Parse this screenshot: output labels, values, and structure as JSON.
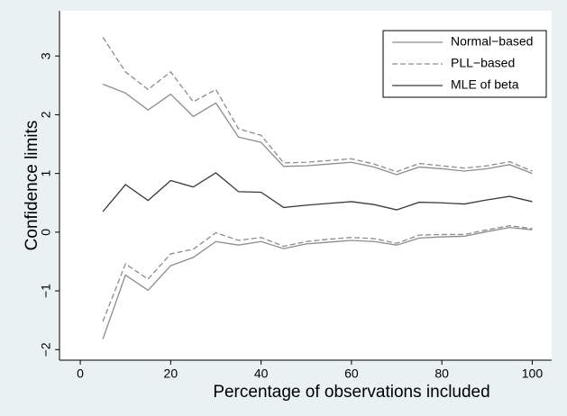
{
  "chart_data": {
    "type": "line",
    "xlabel": "Percentage of observations included",
    "ylabel": "Confidence limits",
    "x": [
      5,
      10,
      15,
      20,
      25,
      30,
      35,
      40,
      45,
      50,
      55,
      60,
      65,
      70,
      75,
      80,
      85,
      90,
      95,
      100
    ],
    "series": [
      {
        "name": "Normal−based",
        "color": "#8c8c8c",
        "dash": false,
        "upper": [
          2.52,
          2.37,
          2.08,
          2.35,
          1.97,
          2.2,
          1.62,
          1.53,
          1.12,
          1.13,
          1.16,
          1.19,
          1.11,
          0.98,
          1.11,
          1.08,
          1.04,
          1.08,
          1.15,
          1.0
        ],
        "lower": [
          -1.82,
          -0.73,
          -0.99,
          -0.57,
          -0.43,
          -0.16,
          -0.22,
          -0.16,
          -0.28,
          -0.2,
          -0.17,
          -0.14,
          -0.16,
          -0.22,
          -0.1,
          -0.08,
          -0.07,
          0.01,
          0.08,
          0.04
        ]
      },
      {
        "name": "PLL−based",
        "color": "#8c8c8c",
        "dash": true,
        "upper": [
          3.32,
          2.73,
          2.43,
          2.73,
          2.22,
          2.43,
          1.76,
          1.65,
          1.18,
          1.19,
          1.22,
          1.25,
          1.16,
          1.03,
          1.17,
          1.13,
          1.09,
          1.13,
          1.2,
          1.04
        ],
        "lower": [
          -1.52,
          -0.54,
          -0.8,
          -0.37,
          -0.29,
          -0.01,
          -0.14,
          -0.09,
          -0.24,
          -0.16,
          -0.12,
          -0.09,
          -0.11,
          -0.19,
          -0.05,
          -0.04,
          -0.04,
          0.04,
          0.11,
          0.06
        ]
      },
      {
        "name": "MLE of beta",
        "color": "#3a3a3a",
        "dash": false,
        "values": [
          0.35,
          0.81,
          0.54,
          0.88,
          0.77,
          1.01,
          0.69,
          0.68,
          0.42,
          0.46,
          0.49,
          0.52,
          0.47,
          0.38,
          0.51,
          0.5,
          0.48,
          0.55,
          0.61,
          0.52
        ]
      }
    ],
    "xlim": [
      -4.6,
      104.3
    ],
    "ylim": [
      -2.18,
      3.77
    ],
    "xticks": [
      0,
      20,
      40,
      60,
      80,
      100
    ],
    "yticks": [
      {
        "value": -2,
        "label": "−2"
      },
      {
        "value": -1,
        "label": "−1"
      },
      0,
      1,
      2,
      3
    ],
    "legend": "top-right"
  }
}
